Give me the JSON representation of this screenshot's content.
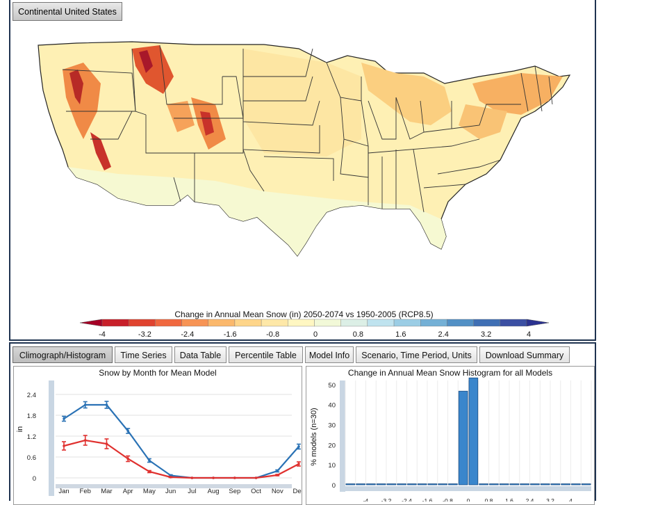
{
  "region": {
    "button_label": "Continental United States"
  },
  "map": {
    "title": "Change in Annual Mean Snow (in) 2050-2074 vs 1950-2005 (RCP8.5)",
    "colorbar": {
      "ticks": [
        "-4",
        "-3.2",
        "-2.4",
        "-1.6",
        "-0.8",
        "0",
        "0.8",
        "1.6",
        "2.4",
        "3.2",
        "4"
      ],
      "colors": [
        "#a50026",
        "#c8202a",
        "#e0432f",
        "#f0683f",
        "#f79455",
        "#fbb86c",
        "#fed58a",
        "#fee8a8",
        "#fff7c2",
        "#f2f9d8",
        "#dcefe6",
        "#bfe3ef",
        "#9bcde5",
        "#74b0d6",
        "#5290c5",
        "#3f6fb4",
        "#3b4fa3",
        "#2b3290"
      ]
    },
    "colors": {
      "background": "#fff7c2",
      "state_outline": "#333333"
    }
  },
  "tabs": [
    {
      "label": "Climograph/Histogram",
      "active": true
    },
    {
      "label": "Time Series"
    },
    {
      "label": "Data Table"
    },
    {
      "label": "Percentile Table"
    },
    {
      "label": "Model Info"
    },
    {
      "label": "Scenario, Time Period, Units"
    },
    {
      "label": "Download Summary"
    }
  ],
  "chart_data": [
    {
      "type": "line",
      "title": "Snow by Month for Mean Model",
      "ylabel": "in",
      "xlabel": "",
      "categories": [
        "Jan",
        "Feb",
        "Mar",
        "Apr",
        "May",
        "Jun",
        "Jul",
        "Aug",
        "Sep",
        "Oct",
        "Nov",
        "Dec"
      ],
      "yticks": [
        "0",
        "0.6",
        "1.2",
        "1.8",
        "2.4"
      ],
      "ylim": [
        0,
        2.8
      ],
      "series": [
        {
          "color": "#2a72b5",
          "values": [
            1.7,
            2.1,
            2.1,
            1.35,
            0.5,
            0.07,
            0,
            0,
            0,
            0,
            0.2,
            0.9
          ],
          "err": [
            0.07,
            0.09,
            0.1,
            0.07,
            0.05,
            0.02,
            0,
            0,
            0,
            0,
            0.03,
            0.07
          ]
        },
        {
          "color": "#e0302e",
          "values": [
            0.92,
            1.08,
            0.98,
            0.55,
            0.18,
            0.02,
            0,
            0,
            0,
            0,
            0.08,
            0.4
          ],
          "err": [
            0.12,
            0.14,
            0.14,
            0.08,
            0.03,
            0.01,
            0,
            0,
            0,
            0,
            0.02,
            0.06
          ]
        }
      ],
      "grid": true
    },
    {
      "type": "bar",
      "title": "Change in Annual Mean Snow Histogram for all Models",
      "ylabel": "% models (n=30)",
      "xlabel": "",
      "xticks": [
        "-4",
        "-3.2",
        "-2.4",
        "-1.6",
        "-0.8",
        "0",
        "0.8",
        "1.6",
        "2.4",
        "3.2",
        "4"
      ],
      "yticks": [
        "0",
        "10",
        "20",
        "30",
        "40",
        "50"
      ],
      "ylim": [
        0,
        52
      ],
      "bins": [
        -4.8,
        -4.4,
        -4.0,
        -3.6,
        -3.2,
        -2.8,
        -2.4,
        -2.0,
        -1.6,
        -1.2,
        -0.8,
        -0.4,
        0.0,
        0.4,
        0.8,
        1.2,
        1.6,
        2.0,
        2.4,
        2.8,
        3.2,
        3.6,
        4.0,
        4.4
      ],
      "values": [
        0,
        0,
        0,
        0,
        0,
        0,
        0,
        0,
        0,
        0,
        0,
        46.7,
        53.3,
        0,
        0,
        0,
        0,
        0,
        0,
        0,
        0,
        0,
        0,
        0
      ],
      "bar_color": "#3a86cc",
      "grid": true
    }
  ]
}
